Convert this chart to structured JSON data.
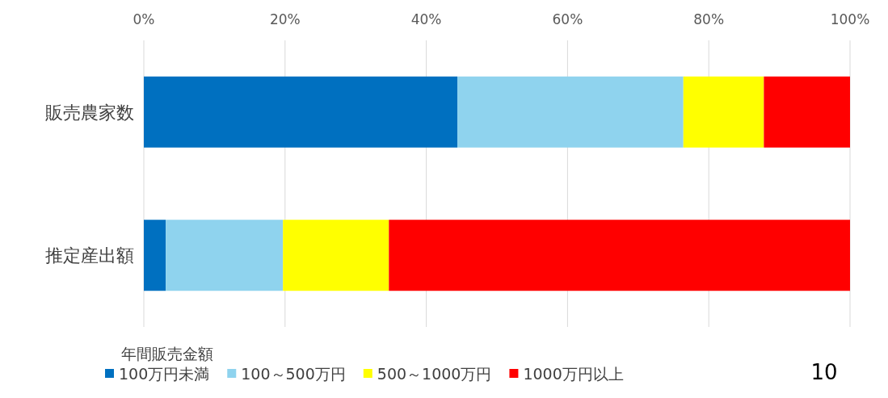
{
  "chart_data": {
    "type": "bar",
    "orientation": "horizontal",
    "stacked": true,
    "categories": [
      "販売農家数",
      "推定産出額"
    ],
    "series": [
      {
        "name": "100万円未満",
        "color": "#0070c0",
        "values": [
          44.4,
          3.1
        ]
      },
      {
        "name": "100～500万円",
        "color": "#8fd3ee",
        "values": [
          32.0,
          16.6
        ]
      },
      {
        "name": "500～1000万円",
        "color": "#ffff00",
        "values": [
          11.4,
          15.0
        ]
      },
      {
        "name": "1000万円以上",
        "color": "#ff0000",
        "values": [
          12.2,
          65.3
        ]
      }
    ],
    "xlim": [
      0,
      100
    ],
    "xticks": [
      {
        "value": 0,
        "label": "0%"
      },
      {
        "value": 20,
        "label": "20%"
      },
      {
        "value": 40,
        "label": "40%"
      },
      {
        "value": 60,
        "label": "60%"
      },
      {
        "value": 80,
        "label": "80%"
      },
      {
        "value": 100,
        "label": "100%"
      }
    ],
    "grid": "x",
    "legend": "bottom",
    "legend_title": "年間販売金額",
    "annotations": [
      "10"
    ]
  }
}
